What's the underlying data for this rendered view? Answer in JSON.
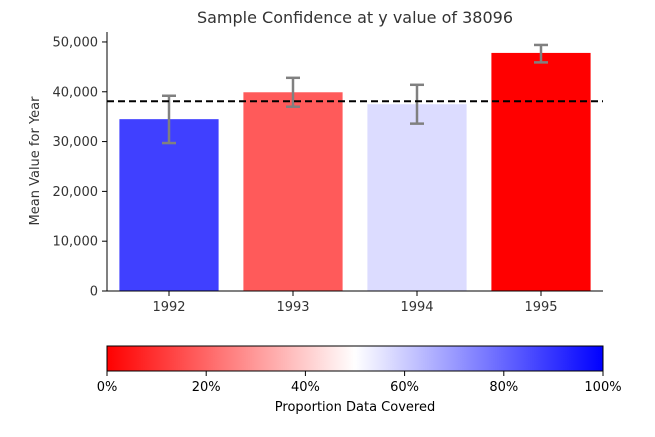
{
  "chart_data": {
    "type": "bar",
    "title": "Sample Confidence at y value of 38096",
    "xlabel": "",
    "ylabel": "Mean Value for Year",
    "categories": [
      "1992",
      "1993",
      "1994",
      "1995"
    ],
    "values": [
      34500,
      39900,
      37500,
      47800
    ],
    "error_low": [
      29700,
      37000,
      33600,
      45900
    ],
    "error_high": [
      39200,
      42800,
      41400,
      49400
    ],
    "bar_colors": [
      "#4040ff",
      "#ff5a5a",
      "#dcdcff",
      "#ff0000"
    ],
    "ylim": [
      0,
      52000
    ],
    "y_ticks": [
      0,
      10000,
      20000,
      30000,
      40000,
      50000
    ],
    "y_tick_labels": [
      "0",
      "10,000",
      "20,000",
      "30,000",
      "40,000",
      "50,000"
    ],
    "reference_line": 38096,
    "grid": false,
    "colorbar": {
      "label": "Proportion Data Covered",
      "tick_labels": [
        "0%",
        "20%",
        "40%",
        "60%",
        "80%",
        "100%"
      ],
      "tick_values": [
        0,
        0.2,
        0.4,
        0.6,
        0.8,
        1.0
      ],
      "colors": [
        "#ff0000",
        "#ffffff",
        "#0000ff"
      ]
    },
    "error_bar_color": "#808080",
    "reference_line_color": "#000000"
  }
}
